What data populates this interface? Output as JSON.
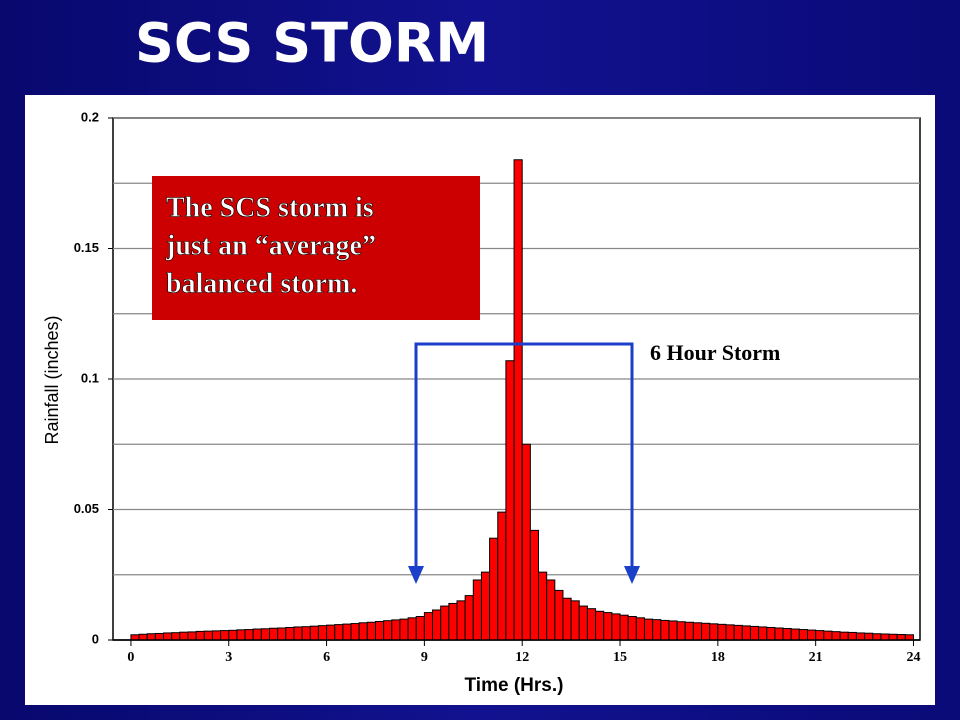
{
  "title": "SCS STORM",
  "chart_data": {
    "type": "histogram",
    "x_label": "Time (Hrs.)",
    "y_label": "Rainfall (inches)",
    "bins": [
      0,
      0.25,
      0.5,
      0.75,
      1,
      1.25,
      1.5,
      1.75,
      2,
      2.25,
      2.5,
      2.75,
      3,
      3.25,
      3.5,
      3.75,
      4,
      4.25,
      4.5,
      4.75,
      5,
      5.25,
      5.5,
      5.75,
      6,
      6.25,
      6.5,
      6.75,
      7,
      7.25,
      7.5,
      7.75,
      8,
      8.25,
      8.5,
      8.75,
      9,
      9.25,
      9.5,
      9.75,
      10,
      10.25,
      10.5,
      10.75,
      11,
      11.25,
      11.5,
      11.75,
      12,
      12.25,
      12.5,
      12.75,
      13,
      13.25,
      13.5,
      13.75,
      14,
      14.25,
      14.5,
      14.75,
      15,
      15.25,
      15.5,
      15.75,
      16,
      16.25,
      16.5,
      16.75,
      17,
      17.25,
      17.5,
      17.75,
      18,
      18.25,
      18.5,
      18.75,
      19,
      19.25,
      19.5,
      19.75,
      20,
      20.25,
      20.5,
      20.75,
      21,
      21.25,
      21.5,
      21.75,
      22,
      22.25,
      22.5,
      22.75,
      23,
      23.25,
      23.5,
      23.75,
      24
    ],
    "values": [
      0.002,
      0.0022,
      0.0024,
      0.0025,
      0.0027,
      0.0028,
      0.003,
      0.0031,
      0.0033,
      0.0034,
      0.0035,
      0.0036,
      0.0037,
      0.0039,
      0.004,
      0.0042,
      0.0043,
      0.0045,
      0.0046,
      0.0048,
      0.005,
      0.0051,
      0.0053,
      0.0055,
      0.0057,
      0.0059,
      0.0061,
      0.0063,
      0.0066,
      0.0068,
      0.0071,
      0.0074,
      0.0077,
      0.008,
      0.0085,
      0.009,
      0.0105,
      0.0115,
      0.013,
      0.014,
      0.015,
      0.017,
      0.023,
      0.026,
      0.039,
      0.049,
      0.107,
      0.184,
      0.075,
      0.042,
      0.026,
      0.023,
      0.019,
      0.016,
      0.015,
      0.013,
      0.012,
      0.011,
      0.0105,
      0.01,
      0.0095,
      0.009,
      0.0085,
      0.008,
      0.0078,
      0.0075,
      0.0073,
      0.007,
      0.0068,
      0.0066,
      0.0064,
      0.0062,
      0.006,
      0.0058,
      0.0056,
      0.0054,
      0.0052,
      0.005,
      0.0048,
      0.0046,
      0.0044,
      0.0042,
      0.004,
      0.0038,
      0.0036,
      0.0034,
      0.0032,
      0.003,
      0.0029,
      0.0027,
      0.0026,
      0.0024,
      0.0023,
      0.0022,
      0.0021,
      0.002
    ],
    "color": "#ff0000",
    "xlim": [
      -0.55,
      24.2
    ],
    "xticks": [
      0,
      3,
      6,
      9,
      12,
      15,
      18,
      21,
      24
    ],
    "ylim": [
      0,
      0.2
    ],
    "yticks": [
      0,
      0.05,
      0.1,
      0.15,
      0.2
    ],
    "yminor_ticks": [
      0.025,
      0.075,
      0.125,
      0.175
    ],
    "grid": true,
    "annotation": [
      "The SCS storm is",
      "just an “average”",
      "balanced storm."
    ],
    "bracket_label": "6 Hour Storm"
  }
}
